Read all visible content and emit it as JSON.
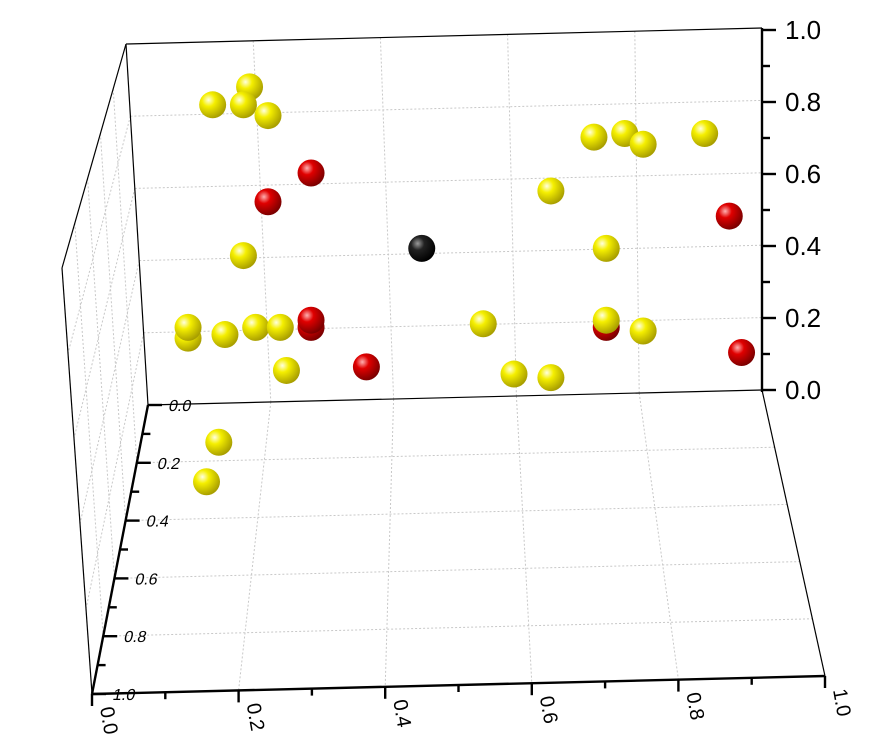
{
  "chart_data": {
    "type": "scatter3d",
    "title": "",
    "xlabel": "",
    "ylabel": "",
    "zlabel": "",
    "xlim": [
      0,
      1
    ],
    "ylim": [
      0,
      1
    ],
    "zlim": [
      0,
      1
    ],
    "grid": true,
    "x_ticks": [
      "0.0",
      "0.2",
      "0.4",
      "0.6",
      "0.8",
      "1.0"
    ],
    "y_ticks": [
      "0.0",
      "0.2",
      "0.4",
      "0.6",
      "0.8",
      "1.0"
    ],
    "z_ticks": [
      "0.0",
      "0.2",
      "0.4",
      "0.6",
      "0.8",
      "1.0"
    ],
    "colors": {
      "yellow": "#f5ef00",
      "red": "#e00000",
      "black": "#111111"
    },
    "points": [
      {
        "x": 0.17,
        "y": 0.0,
        "z": 0.85,
        "color": "yellow"
      },
      {
        "x": 0.11,
        "y": 0.0,
        "z": 0.8,
        "color": "yellow"
      },
      {
        "x": 0.16,
        "y": 0.0,
        "z": 0.8,
        "color": "yellow"
      },
      {
        "x": 0.2,
        "y": 0.0,
        "z": 0.77,
        "color": "yellow"
      },
      {
        "x": 0.27,
        "y": 0.0,
        "z": 0.61,
        "color": "red"
      },
      {
        "x": 0.2,
        "y": 0.0,
        "z": 0.53,
        "color": "red"
      },
      {
        "x": 0.16,
        "y": 0.0,
        "z": 0.38,
        "color": "yellow"
      },
      {
        "x": 0.45,
        "y": 0.0,
        "z": 0.4,
        "color": "black"
      },
      {
        "x": 0.07,
        "y": 0.0,
        "z": 0.15,
        "color": "yellow"
      },
      {
        "x": 0.07,
        "y": 0.0,
        "z": 0.18,
        "color": "yellow"
      },
      {
        "x": 0.13,
        "y": 0.0,
        "z": 0.16,
        "color": "yellow"
      },
      {
        "x": 0.18,
        "y": 0.0,
        "z": 0.18,
        "color": "yellow"
      },
      {
        "x": 0.22,
        "y": 0.0,
        "z": 0.18,
        "color": "yellow"
      },
      {
        "x": 0.27,
        "y": 0.0,
        "z": 0.18,
        "color": "red"
      },
      {
        "x": 0.27,
        "y": 0.0,
        "z": 0.2,
        "color": "red"
      },
      {
        "x": 0.23,
        "y": 0.0,
        "z": 0.06,
        "color": "yellow"
      },
      {
        "x": 0.36,
        "y": 0.0,
        "z": 0.07,
        "color": "red"
      },
      {
        "x": 0.55,
        "y": 0.0,
        "z": 0.19,
        "color": "yellow"
      },
      {
        "x": 0.6,
        "y": 0.0,
        "z": 0.05,
        "color": "yellow"
      },
      {
        "x": 0.66,
        "y": 0.0,
        "z": 0.04,
        "color": "yellow"
      },
      {
        "x": 0.66,
        "y": 0.0,
        "z": 0.56,
        "color": "yellow"
      },
      {
        "x": 0.73,
        "y": 0.0,
        "z": 0.71,
        "color": "yellow"
      },
      {
        "x": 0.78,
        "y": 0.0,
        "z": 0.72,
        "color": "yellow"
      },
      {
        "x": 0.81,
        "y": 0.0,
        "z": 0.69,
        "color": "yellow"
      },
      {
        "x": 0.91,
        "y": 0.0,
        "z": 0.72,
        "color": "yellow"
      },
      {
        "x": 0.95,
        "y": 0.0,
        "z": 0.49,
        "color": "red"
      },
      {
        "x": 0.75,
        "y": 0.0,
        "z": 0.4,
        "color": "yellow"
      },
      {
        "x": 0.75,
        "y": 0.0,
        "z": 0.18,
        "color": "red"
      },
      {
        "x": 0.75,
        "y": 0.0,
        "z": 0.2,
        "color": "yellow"
      },
      {
        "x": 0.81,
        "y": 0.0,
        "z": 0.17,
        "color": "yellow"
      },
      {
        "x": 0.97,
        "y": 0.0,
        "z": 0.11,
        "color": "red"
      },
      {
        "x": 0.12,
        "y": 0.0,
        "z": -0.14,
        "color": "yellow"
      },
      {
        "x": 0.1,
        "y": 0.0,
        "z": -0.25,
        "color": "yellow"
      }
    ]
  }
}
